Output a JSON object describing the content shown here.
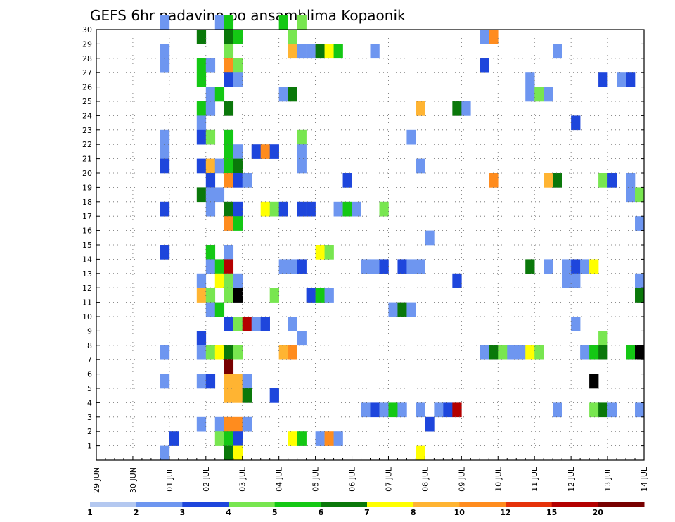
{
  "chart_data": {
    "type": "heatmap",
    "title": "GEFS 6hr padavine po ansamblima Kopaonik",
    "xlabel": "",
    "ylabel": "",
    "x_unit": "6-hour steps starting 29 JUN 00Z",
    "x_ticks": [
      "29 JUN",
      "30 JUN",
      "01 JUL",
      "02 JUL",
      "03 JUL",
      "04 JUL",
      "05 JUL",
      "06 JUL",
      "07 JUL",
      "08 JUL",
      "09 JUL",
      "10 JUL",
      "11 JUL",
      "12 JUL",
      "13 JUL",
      "14 JUL"
    ],
    "y_ticks": [
      "1",
      "2",
      "3",
      "4",
      "5",
      "6",
      "7",
      "8",
      "9",
      "10",
      "11",
      "12",
      "13",
      "14",
      "15",
      "16",
      "17",
      "18",
      "19",
      "20",
      "21",
      "22",
      "23",
      "24",
      "25",
      "26",
      "27",
      "28",
      "29",
      "30"
    ],
    "xlim": [
      0,
      60
    ],
    "ylim": [
      0,
      30
    ],
    "grid": true,
    "colorbar": {
      "position": "bottom",
      "labels": [
        "1",
        "2",
        "3",
        "4",
        "5",
        "6",
        "7",
        "8",
        "10",
        "12",
        "15",
        "20"
      ],
      "colors": [
        "#b4c8f0",
        "#6e96f0",
        "#1e46dc",
        "#78e650",
        "#14c814",
        "#0a780a",
        "#ffff00",
        "#ffb432",
        "#ff8c1e",
        "#e6320a",
        "#b40000",
        "#780000"
      ]
    },
    "cells": [
      [
        7,
        30,
        1
      ],
      [
        13,
        30,
        1
      ],
      [
        14,
        30,
        4
      ],
      [
        20,
        30,
        4
      ],
      [
        22,
        30,
        3
      ],
      [
        11,
        29,
        5
      ],
      [
        14,
        29,
        5
      ],
      [
        15,
        29,
        4
      ],
      [
        21,
        29,
        3
      ],
      [
        42,
        29,
        1
      ],
      [
        43,
        29,
        8
      ],
      [
        7,
        28,
        1
      ],
      [
        14,
        28,
        3
      ],
      [
        21,
        28,
        7
      ],
      [
        22,
        28,
        1
      ],
      [
        23,
        28,
        1
      ],
      [
        24,
        28,
        5
      ],
      [
        25,
        28,
        6
      ],
      [
        26,
        28,
        4
      ],
      [
        30,
        28,
        1
      ],
      [
        50,
        28,
        1
      ],
      [
        7,
        27,
        1
      ],
      [
        11,
        27,
        4
      ],
      [
        12,
        27,
        1
      ],
      [
        14,
        27,
        8
      ],
      [
        15,
        27,
        3
      ],
      [
        42,
        27,
        2
      ],
      [
        11,
        26,
        4
      ],
      [
        14,
        26,
        2
      ],
      [
        15,
        26,
        1
      ],
      [
        47,
        26,
        1
      ],
      [
        55,
        26,
        2
      ],
      [
        57,
        26,
        1
      ],
      [
        58,
        26,
        2
      ],
      [
        12,
        25,
        1
      ],
      [
        13,
        25,
        4
      ],
      [
        20,
        25,
        1
      ],
      [
        21,
        25,
        5
      ],
      [
        47,
        25,
        1
      ],
      [
        48,
        25,
        3
      ],
      [
        49,
        25,
        1
      ],
      [
        11,
        24,
        4
      ],
      [
        12,
        24,
        1
      ],
      [
        14,
        24,
        5
      ],
      [
        35,
        24,
        7
      ],
      [
        39,
        24,
        5
      ],
      [
        40,
        24,
        1
      ],
      [
        11,
        23,
        1
      ],
      [
        52,
        23,
        2
      ],
      [
        7,
        22,
        1
      ],
      [
        11,
        22,
        2
      ],
      [
        12,
        22,
        3
      ],
      [
        14,
        22,
        4
      ],
      [
        22,
        22,
        3
      ],
      [
        34,
        22,
        1
      ],
      [
        7,
        21,
        1
      ],
      [
        14,
        21,
        4
      ],
      [
        15,
        21,
        1
      ],
      [
        17,
        21,
        2
      ],
      [
        18,
        21,
        8
      ],
      [
        19,
        21,
        2
      ],
      [
        22,
        21,
        1
      ],
      [
        7,
        20,
        2
      ],
      [
        11,
        20,
        2
      ],
      [
        12,
        20,
        7
      ],
      [
        13,
        20,
        1
      ],
      [
        14,
        20,
        4
      ],
      [
        15,
        20,
        5
      ],
      [
        22,
        20,
        1
      ],
      [
        35,
        20,
        1
      ],
      [
        12,
        19,
        2
      ],
      [
        14,
        19,
        8
      ],
      [
        15,
        19,
        2
      ],
      [
        16,
        19,
        1
      ],
      [
        27,
        19,
        2
      ],
      [
        43,
        19,
        8
      ],
      [
        49,
        19,
        7
      ],
      [
        50,
        19,
        5
      ],
      [
        55,
        19,
        3
      ],
      [
        56,
        19,
        2
      ],
      [
        58,
        19,
        1
      ],
      [
        11,
        18,
        5
      ],
      [
        12,
        18,
        1
      ],
      [
        13,
        18,
        1
      ],
      [
        58,
        18,
        1
      ],
      [
        59,
        18,
        3
      ],
      [
        7,
        17,
        2
      ],
      [
        12,
        17,
        1
      ],
      [
        14,
        17,
        5
      ],
      [
        15,
        17,
        2
      ],
      [
        18,
        17,
        6
      ],
      [
        19,
        17,
        3
      ],
      [
        20,
        17,
        2
      ],
      [
        22,
        17,
        2
      ],
      [
        23,
        17,
        2
      ],
      [
        26,
        17,
        1
      ],
      [
        27,
        17,
        4
      ],
      [
        28,
        17,
        1
      ],
      [
        31,
        17,
        3
      ],
      [
        14,
        16,
        8
      ],
      [
        15,
        16,
        4
      ],
      [
        59,
        16,
        1
      ],
      [
        36,
        15,
        1
      ],
      [
        7,
        14,
        2
      ],
      [
        12,
        14,
        4
      ],
      [
        14,
        14,
        1
      ],
      [
        24,
        14,
        6
      ],
      [
        25,
        14,
        3
      ],
      [
        12,
        13,
        1
      ],
      [
        13,
        13,
        4
      ],
      [
        14,
        13,
        10
      ],
      [
        20,
        13,
        1
      ],
      [
        21,
        13,
        1
      ],
      [
        22,
        13,
        2
      ],
      [
        29,
        13,
        1
      ],
      [
        30,
        13,
        1
      ],
      [
        31,
        13,
        2
      ],
      [
        33,
        13,
        2
      ],
      [
        34,
        13,
        1
      ],
      [
        35,
        13,
        1
      ],
      [
        47,
        13,
        5
      ],
      [
        49,
        13,
        1
      ],
      [
        51,
        13,
        1
      ],
      [
        52,
        13,
        2
      ],
      [
        53,
        13,
        1
      ],
      [
        54,
        13,
        6
      ],
      [
        11,
        12,
        1
      ],
      [
        13,
        12,
        6
      ],
      [
        14,
        12,
        3
      ],
      [
        15,
        12,
        1
      ],
      [
        39,
        12,
        2
      ],
      [
        51,
        12,
        1
      ],
      [
        52,
        12,
        1
      ],
      [
        59,
        12,
        1
      ],
      [
        11,
        11,
        7
      ],
      [
        12,
        11,
        3
      ],
      [
        14,
        11,
        3
      ],
      [
        15,
        11,
        12
      ],
      [
        19,
        11,
        3
      ],
      [
        23,
        11,
        2
      ],
      [
        24,
        11,
        4
      ],
      [
        25,
        11,
        1
      ],
      [
        59,
        11,
        5
      ],
      [
        12,
        10,
        1
      ],
      [
        13,
        10,
        4
      ],
      [
        32,
        10,
        1
      ],
      [
        33,
        10,
        5
      ],
      [
        34,
        10,
        1
      ],
      [
        14,
        9,
        2
      ],
      [
        15,
        9,
        3
      ],
      [
        16,
        9,
        10
      ],
      [
        17,
        9,
        1
      ],
      [
        18,
        9,
        2
      ],
      [
        21,
        9,
        1
      ],
      [
        52,
        9,
        1
      ],
      [
        11,
        8,
        2
      ],
      [
        22,
        8,
        1
      ],
      [
        55,
        8,
        3
      ],
      [
        7,
        7,
        1
      ],
      [
        11,
        7,
        1
      ],
      [
        12,
        7,
        3
      ],
      [
        13,
        7,
        6
      ],
      [
        14,
        7,
        5
      ],
      [
        15,
        7,
        3
      ],
      [
        20,
        7,
        7
      ],
      [
        21,
        7,
        8
      ],
      [
        42,
        7,
        1
      ],
      [
        43,
        7,
        5
      ],
      [
        44,
        7,
        3
      ],
      [
        45,
        7,
        1
      ],
      [
        46,
        7,
        1
      ],
      [
        47,
        7,
        6
      ],
      [
        48,
        7,
        3
      ],
      [
        53,
        7,
        1
      ],
      [
        54,
        7,
        4
      ],
      [
        55,
        7,
        5
      ],
      [
        58,
        7,
        4
      ],
      [
        59,
        7,
        12
      ],
      [
        14,
        6,
        11
      ],
      [
        7,
        5,
        1
      ],
      [
        11,
        5,
        1
      ],
      [
        12,
        5,
        2
      ],
      [
        14,
        5,
        7
      ],
      [
        15,
        5,
        7
      ],
      [
        16,
        5,
        1
      ],
      [
        54,
        5,
        12
      ],
      [
        14,
        4,
        7
      ],
      [
        15,
        4,
        7
      ],
      [
        16,
        4,
        5
      ],
      [
        19,
        4,
        2
      ],
      [
        29,
        3,
        1
      ],
      [
        30,
        3,
        2
      ],
      [
        31,
        3,
        1
      ],
      [
        32,
        3,
        4
      ],
      [
        33,
        3,
        1
      ],
      [
        35,
        3,
        1
      ],
      [
        37,
        3,
        1
      ],
      [
        38,
        3,
        2
      ],
      [
        39,
        3,
        10
      ],
      [
        50,
        3,
        1
      ],
      [
        54,
        3,
        3
      ],
      [
        55,
        3,
        5
      ],
      [
        56,
        3,
        1
      ],
      [
        59,
        3,
        1
      ],
      [
        11,
        2,
        1
      ],
      [
        13,
        2,
        1
      ],
      [
        14,
        2,
        8
      ],
      [
        15,
        2,
        8
      ],
      [
        16,
        2,
        1
      ],
      [
        36,
        2,
        2
      ],
      [
        8,
        1,
        2
      ],
      [
        13,
        1,
        3
      ],
      [
        14,
        1,
        4
      ],
      [
        15,
        1,
        2
      ],
      [
        21,
        1,
        6
      ],
      [
        22,
        1,
        4
      ],
      [
        24,
        1,
        1
      ],
      [
        25,
        1,
        8
      ],
      [
        26,
        1,
        1
      ],
      [
        7,
        0,
        1
      ],
      [
        14,
        0,
        5
      ],
      [
        15,
        0,
        6
      ],
      [
        35,
        0,
        6
      ]
    ]
  }
}
